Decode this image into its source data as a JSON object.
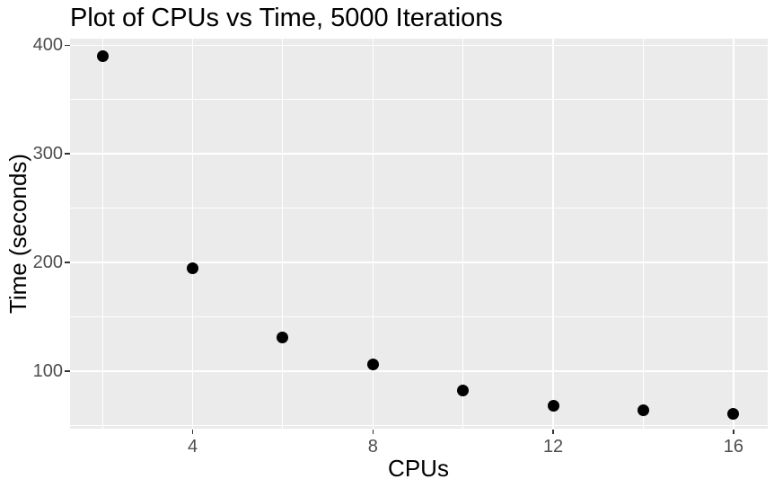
{
  "chart_data": {
    "type": "scatter",
    "title": "Plot of CPUs vs Time, 5000 Iterations",
    "xlabel": "CPUs",
    "ylabel": "Time (seconds)",
    "x": [
      2,
      4,
      6,
      8,
      10,
      12,
      14,
      16
    ],
    "y": [
      390,
      195,
      131,
      106,
      82,
      68,
      64,
      61
    ],
    "xlim": [
      1.28,
      16.76
    ],
    "ylim": [
      47,
      406
    ],
    "x_major_ticks": [
      4,
      8,
      12,
      16
    ],
    "x_minor_gridlines": [
      2,
      6,
      10,
      14
    ],
    "y_major_ticks": [
      100,
      200,
      300,
      400
    ],
    "y_minor_gridlines": [
      50,
      150,
      250,
      350
    ],
    "grid": "on",
    "legend": "none",
    "point_color": "#000000",
    "panel_background": "#EBEBEB",
    "gridline_color": "#FFFFFF",
    "tick_mark_color": "#333333",
    "tick_label_color": "#4D4D4D",
    "axis_title_color": "#000000",
    "title_color": "#000000"
  }
}
